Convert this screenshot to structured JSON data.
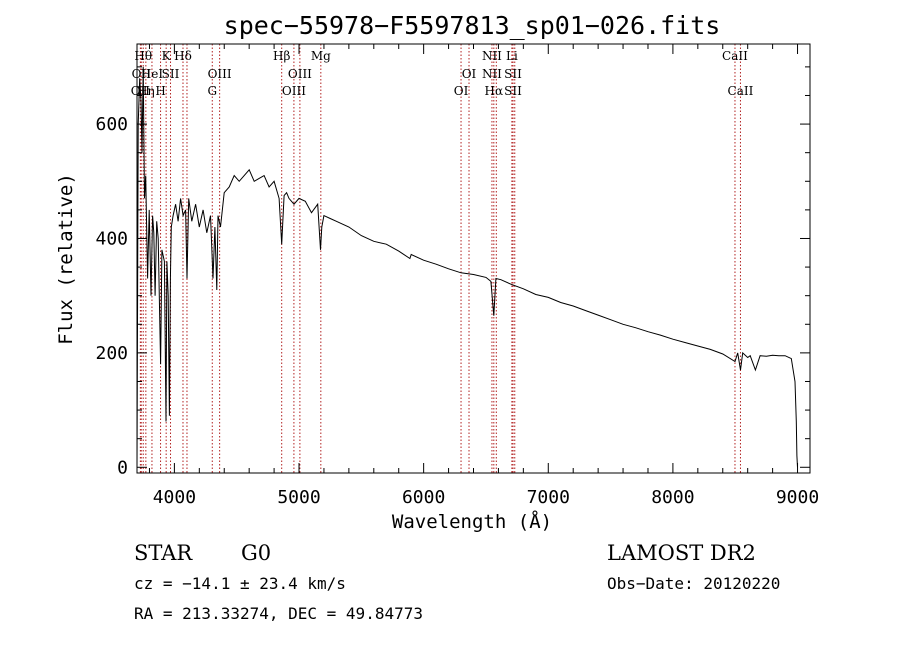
{
  "chart_data": {
    "type": "line",
    "title": "spec−55978−F5597813_sp01−026.fits",
    "xlabel": "Wavelength (Å)",
    "ylabel": "Flux (relative)",
    "xlim": [
      3700,
      9100
    ],
    "ylim": [
      -10,
      740
    ],
    "x_ticks": [
      4000,
      5000,
      6000,
      7000,
      8000,
      9000
    ],
    "y_ticks": [
      0,
      200,
      400,
      600
    ],
    "x_tick_labels": [
      "4000",
      "5000",
      "6000",
      "7000",
      "8000",
      "9000"
    ],
    "y_tick_labels": [
      "0",
      "200",
      "400",
      "600"
    ],
    "grid": false,
    "line_color": "#000000",
    "marker_color": "#b22222",
    "series": [
      {
        "x": [
          3700,
          3710,
          3722,
          3732,
          3740,
          3750,
          3760,
          3770,
          3785,
          3798,
          3812,
          3825,
          3835,
          3845,
          3858,
          3870,
          3889,
          3900,
          3920,
          3933,
          3940,
          3950,
          3960,
          3968,
          3975,
          3990,
          4010,
          4030,
          4050,
          4070,
          4090,
          4101,
          4115,
          4140,
          4170,
          4200,
          4230,
          4260,
          4290,
          4310,
          4325,
          4340,
          4350,
          4370,
          4400,
          4440,
          4480,
          4520,
          4560,
          4600,
          4640,
          4680,
          4720,
          4760,
          4800,
          4840,
          4861,
          4880,
          4900,
          4920,
          4960,
          5000,
          5050,
          5100,
          5150,
          5172,
          5183,
          5200,
          5250,
          5300,
          5400,
          5500,
          5600,
          5700,
          5800,
          5890,
          5900,
          6000,
          6100,
          6200,
          6300,
          6400,
          6500,
          6540,
          6563,
          6580,
          6620,
          6700,
          6800,
          6900,
          7000,
          7100,
          7200,
          7300,
          7400,
          7500,
          7600,
          7700,
          7800,
          7900,
          8000,
          8100,
          8200,
          8300,
          8400,
          8498,
          8520,
          8542,
          8560,
          8600,
          8620,
          8662,
          8700,
          8750,
          8800,
          8850,
          8900,
          8950,
          8980,
          8990,
          8995,
          9000
        ],
        "y": [
          3,
          600,
          680,
          640,
          550,
          700,
          470,
          510,
          330,
          450,
          300,
          440,
          410,
          300,
          430,
          400,
          180,
          380,
          360,
          80,
          360,
          300,
          90,
          330,
          420,
          440,
          460,
          430,
          470,
          440,
          450,
          330,
          470,
          430,
          460,
          420,
          450,
          410,
          440,
          330,
          420,
          310,
          440,
          420,
          480,
          490,
          510,
          500,
          510,
          520,
          500,
          505,
          510,
          490,
          500,
          470,
          390,
          475,
          480,
          470,
          460,
          470,
          465,
          445,
          460,
          380,
          420,
          440,
          435,
          430,
          420,
          405,
          395,
          390,
          378,
          365,
          372,
          362,
          355,
          347,
          340,
          337,
          332,
          325,
          265,
          330,
          328,
          320,
          312,
          302,
          297,
          288,
          282,
          274,
          266,
          258,
          250,
          244,
          237,
          231,
          224,
          218,
          212,
          206,
          198,
          185,
          200,
          170,
          200,
          192,
          195,
          170,
          195,
          194,
          196,
          195,
          195,
          190,
          150,
          80,
          20,
          0
        ]
      }
    ],
    "lines": [
      {
        "wl": 3727,
        "labels": [
          {
            "text": "OII",
            "row": 2
          }
        ]
      },
      {
        "wl": 3734,
        "labels": [
          {
            "text": "OII",
            "row": 1
          }
        ]
      },
      {
        "wl": 3750,
        "labels": [
          {
            "text": "Hθ",
            "row": 0
          }
        ]
      },
      {
        "wl": 3771,
        "labels": [
          {
            "text": "Hη",
            "row": 2
          }
        ]
      },
      {
        "wl": 3820,
        "labels": [
          {
            "text": "HeI",
            "row": 1
          }
        ]
      },
      {
        "wl": 3889,
        "labels": [
          {
            "text": "H",
            "row": 2
          }
        ]
      },
      {
        "wl": 3934,
        "labels": [
          {
            "text": "K",
            "row": 0
          }
        ]
      },
      {
        "wl": 3969,
        "labels": [
          {
            "text": "SII",
            "row": 1
          }
        ]
      },
      {
        "wl": 4069,
        "labels": [
          {
            "text": "Hδ",
            "row": 0
          }
        ]
      },
      {
        "wl": 4101,
        "labels": []
      },
      {
        "wl": 4304,
        "labels": [
          {
            "text": "G",
            "row": 2
          }
        ]
      },
      {
        "wl": 4363,
        "labels": [
          {
            "text": "OIII",
            "row": 1
          }
        ]
      },
      {
        "wl": 4861,
        "labels": [
          {
            "text": "Hβ",
            "row": 0
          }
        ]
      },
      {
        "wl": 4959,
        "labels": [
          {
            "text": "OIII",
            "row": 2
          }
        ]
      },
      {
        "wl": 5007,
        "labels": [
          {
            "text": "OIII",
            "row": 1
          }
        ]
      },
      {
        "wl": 5175,
        "labels": [
          {
            "text": "Mg",
            "row": 0
          }
        ]
      },
      {
        "wl": 6300,
        "labels": [
          {
            "text": "OI",
            "row": 2
          }
        ]
      },
      {
        "wl": 6364,
        "labels": [
          {
            "text": "OI",
            "row": 1
          }
        ]
      },
      {
        "wl": 6548,
        "labels": [
          {
            "text": "NII",
            "row": 0
          },
          {
            "text": "NII",
            "row": 1
          }
        ]
      },
      {
        "wl": 6563,
        "labels": [
          {
            "text": "Hα",
            "row": 2
          }
        ]
      },
      {
        "wl": 6583,
        "labels": []
      },
      {
        "wl": 6708,
        "labels": [
          {
            "text": "Li",
            "row": 0
          }
        ]
      },
      {
        "wl": 6717,
        "labels": [
          {
            "text": "SII",
            "row": 1
          },
          {
            "text": "SII",
            "row": 2
          }
        ]
      },
      {
        "wl": 6731,
        "labels": []
      },
      {
        "wl": 8498,
        "labels": [
          {
            "text": "CaII",
            "row": 0
          }
        ]
      },
      {
        "wl": 8542,
        "labels": [
          {
            "text": "CaII",
            "row": 2
          }
        ]
      }
    ]
  },
  "info": {
    "class": "STAR",
    "subclass": "G0",
    "survey": "LAMOST DR2",
    "cz": "cz = −14.1 ± 23.4 km/s",
    "obs_date": "Obs−Date: 20120220",
    "radec": "RA = 213.33274, DEC =  49.84773"
  }
}
